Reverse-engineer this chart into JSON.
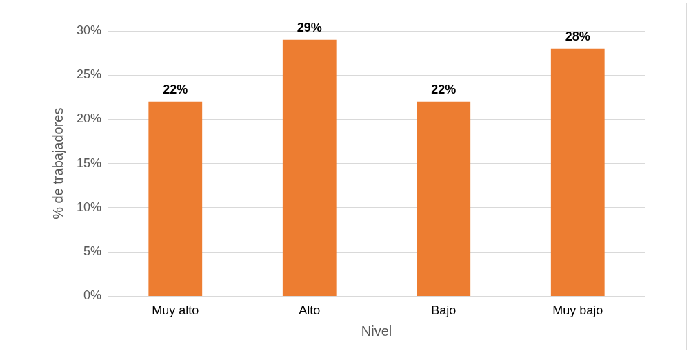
{
  "chart_data": {
    "type": "bar",
    "xlabel": "Nivel",
    "ylabel": "% de trabajadores",
    "categories": [
      "Muy alto",
      "Alto",
      "Bajo",
      "Muy bajo"
    ],
    "values": [
      22,
      29,
      22,
      28
    ],
    "color": "#ed7d31",
    "value_labels": [
      "22%",
      "29%",
      "22%",
      "28%"
    ],
    "ylim": [
      0,
      30
    ],
    "yticks": [
      {
        "value": 0,
        "label": "0%"
      },
      {
        "value": 5,
        "label": "5%"
      },
      {
        "value": 10,
        "label": "10%"
      },
      {
        "value": 15,
        "label": "15%"
      },
      {
        "value": 20,
        "label": "20%"
      },
      {
        "value": 25,
        "label": "25%"
      },
      {
        "value": 30,
        "label": "30%"
      }
    ],
    "grid": "y",
    "legend": false
  }
}
